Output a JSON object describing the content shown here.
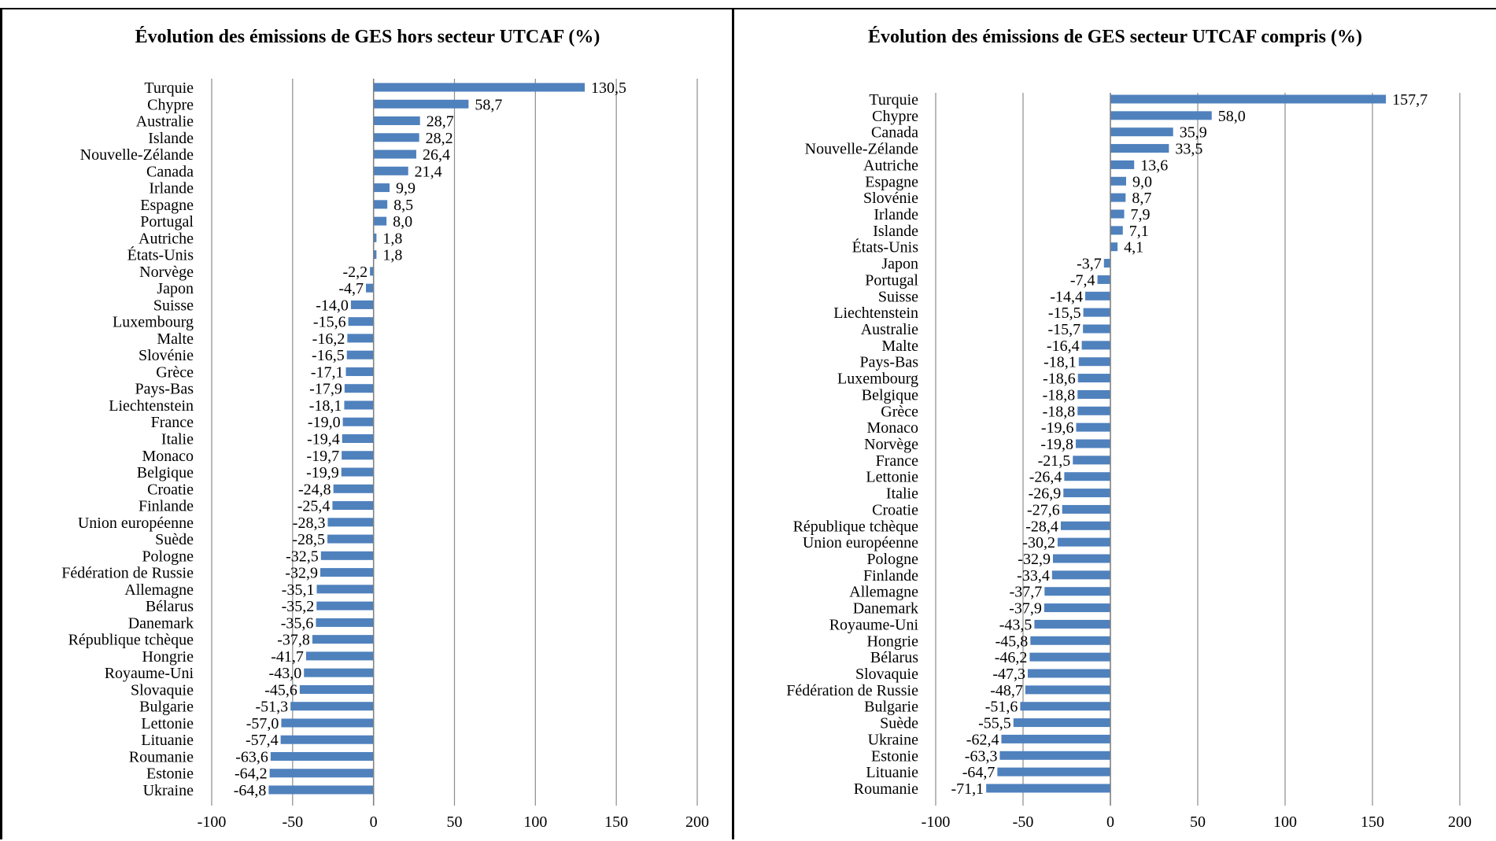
{
  "chart_data": [
    {
      "type": "bar",
      "orientation": "horizontal",
      "title": "Évolution des émissions de GES hors secteur UTCAF (%)",
      "xlim": [
        -100,
        200
      ],
      "xticks": [
        -100,
        -50,
        0,
        50,
        100,
        150,
        200
      ],
      "xtick_labels": [
        "-100",
        "-50",
        "0",
        "50",
        "100",
        "150",
        "200"
      ],
      "grid": "vertical",
      "bar_color": "#4F81BD",
      "categories": [
        "Turquie",
        "Chypre",
        "Australie",
        "Islande",
        "Nouvelle-Zélande",
        "Canada",
        "Irlande",
        "Espagne",
        "Portugal",
        "Autriche",
        "États-Unis",
        "Norvège",
        "Japon",
        "Suisse",
        "Luxembourg",
        "Malte",
        "Slovénie",
        "Grèce",
        "Pays-Bas",
        "Liechtenstein",
        "France",
        "Italie",
        "Monaco",
        "Belgique",
        "Croatie",
        "Finlande",
        "Union européenne",
        "Suède",
        "Pologne",
        "Fédération de Russie",
        "Allemagne",
        "Bélarus",
        "Danemark",
        "République tchèque",
        "Hongrie",
        "Royaume-Uni",
        "Slovaquie",
        "Bulgarie",
        "Lettonie",
        "Lituanie",
        "Roumanie",
        "Estonie",
        "Ukraine"
      ],
      "values": [
        130.5,
        58.7,
        28.7,
        28.2,
        26.4,
        21.4,
        9.9,
        8.5,
        8.0,
        1.8,
        1.8,
        -2.2,
        -4.7,
        -14.0,
        -15.6,
        -16.2,
        -16.5,
        -17.1,
        -17.9,
        -18.1,
        -19.0,
        -19.4,
        -19.7,
        -19.9,
        -24.8,
        -25.4,
        -28.3,
        -28.5,
        -32.5,
        -32.9,
        -35.1,
        -35.2,
        -35.6,
        -37.8,
        -41.7,
        -43.0,
        -45.6,
        -51.3,
        -57.0,
        -57.4,
        -63.6,
        -64.2,
        -64.8
      ],
      "value_labels": [
        "130,5",
        "58,7",
        "28,7",
        "28,2",
        "26,4",
        "21,4",
        "9,9",
        "8,5",
        "8,0",
        "1,8",
        "1,8",
        "-2,2",
        "-4,7",
        "-14,0",
        "-15,6",
        "-16,2",
        "-16,5",
        "-17,1",
        "-17,9",
        "-18,1",
        "-19,0",
        "-19,4",
        "-19,7",
        "-19,9",
        "-24,8",
        "-25,4",
        "-28,3",
        "-28,5",
        "-32,5",
        "-32,9",
        "-35,1",
        "-35,2",
        "-35,6",
        "-37,8",
        "-41,7",
        "-43,0",
        "-45,6",
        "-51,3",
        "-57,0",
        "-57,4",
        "-63,6",
        "-64,2",
        "-64,8"
      ]
    },
    {
      "type": "bar",
      "orientation": "horizontal",
      "title": "Évolution des émissions de GES secteur UTCAF compris (%)",
      "xlim": [
        -100,
        200
      ],
      "xticks": [
        -100,
        -50,
        0,
        50,
        100,
        150,
        200
      ],
      "xtick_labels": [
        "-100",
        "-50",
        "0",
        "50",
        "100",
        "150",
        "200"
      ],
      "grid": "vertical",
      "bar_color": "#4F81BD",
      "categories": [
        "Turquie",
        "Chypre",
        "Canada",
        "Nouvelle-Zélande",
        "Autriche",
        "Espagne",
        "Slovénie",
        "Irlande",
        "Islande",
        "États-Unis",
        "Japon",
        "Portugal",
        "Suisse",
        "Liechtenstein",
        "Australie",
        "Malte",
        "Pays-Bas",
        "Luxembourg",
        "Belgique",
        "Grèce",
        "Monaco",
        "Norvège",
        "France",
        "Lettonie",
        "Italie",
        "Croatie",
        "République tchèque",
        "Union européenne",
        "Pologne",
        "Finlande",
        "Allemagne",
        "Danemark",
        "Royaume-Uni",
        "Hongrie",
        "Bélarus",
        "Slovaquie",
        "Fédération de Russie",
        "Bulgarie",
        "Suède",
        "Ukraine",
        "Estonie",
        "Lituanie",
        "Roumanie"
      ],
      "values": [
        157.7,
        58.0,
        35.9,
        33.5,
        13.6,
        9.0,
        8.7,
        7.9,
        7.1,
        4.1,
        -3.7,
        -7.4,
        -14.4,
        -15.5,
        -15.7,
        -16.4,
        -18.1,
        -18.6,
        -18.8,
        -18.8,
        -19.6,
        -19.8,
        -21.5,
        -26.4,
        -26.9,
        -27.6,
        -28.4,
        -30.2,
        -32.9,
        -33.4,
        -37.7,
        -37.9,
        -43.5,
        -45.8,
        -46.2,
        -47.3,
        -48.7,
        -51.6,
        -55.5,
        -62.4,
        -63.3,
        -64.7,
        -71.1
      ],
      "value_labels": [
        "157,7",
        "58,0",
        "35,9",
        "33,5",
        "13,6",
        "9,0",
        "8,7",
        "7,9",
        "7,1",
        "4,1",
        "-3,7",
        "-7,4",
        "-14,4",
        "-15,5",
        "-15,7",
        "-16,4",
        "-18,1",
        "-18,6",
        "-18,8",
        "-18,8",
        "-19,6",
        "-19,8",
        "-21,5",
        "-26,4",
        "-26,9",
        "-27,6",
        "-28,4",
        "-30,2",
        "-32,9",
        "-33,4",
        "-37,7",
        "-37,9",
        "-43,5",
        "-45,8",
        "-46,2",
        "-47,3",
        "-48,7",
        "-51,6",
        "-55,5",
        "-62,4",
        "-63,3",
        "-64,7",
        "-71,1"
      ]
    }
  ]
}
